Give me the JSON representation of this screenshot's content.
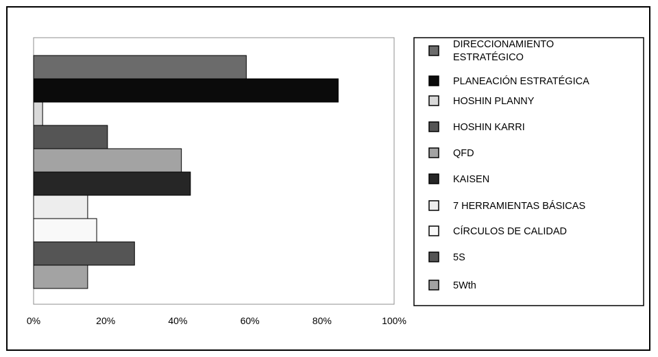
{
  "chart_data": {
    "type": "bar",
    "orientation": "horizontal",
    "categories": [
      "DIRECCIONAMIENTO ESTRATÉGICO",
      "PLANEACIÓN ESTRATÉGICA",
      "HOSHIN PLANNY",
      "HOSHIN KARRI",
      "QFD",
      "KAISEN",
      "7 HERRAMIENTAS BÁSICAS",
      "CÍRCULOS DE CALIDAD",
      "5S",
      "5Wth"
    ],
    "values": [
      59,
      84.5,
      2.5,
      20.5,
      41,
      43.5,
      15,
      17.5,
      28,
      15
    ],
    "colors": [
      "#6b6b6b",
      "#0b0b0b",
      "#d9d9d9",
      "#555555",
      "#a3a3a3",
      "#262626",
      "#ededed",
      "#f9f9f9",
      "#555555",
      "#a3a3a3"
    ],
    "xlim": [
      0,
      100
    ],
    "x_ticks": [
      "0%",
      "20%",
      "40%",
      "60%",
      "80%",
      "100%"
    ],
    "x_tick_values": [
      0,
      20,
      40,
      60,
      80,
      100
    ],
    "grid": false,
    "legend_position": "right",
    "legend": [
      "DIRECCIONAMIENTO ESTRATÉGICO",
      "PLANEACIÓN ESTRATÉGICA",
      "HOSHIN PLANNY",
      "HOSHIN KARRI",
      "QFD",
      "KAISEN",
      "7 HERRAMIENTAS BÁSICAS",
      "CÍRCULOS DE CALIDAD",
      "5S",
      "5Wth"
    ]
  }
}
